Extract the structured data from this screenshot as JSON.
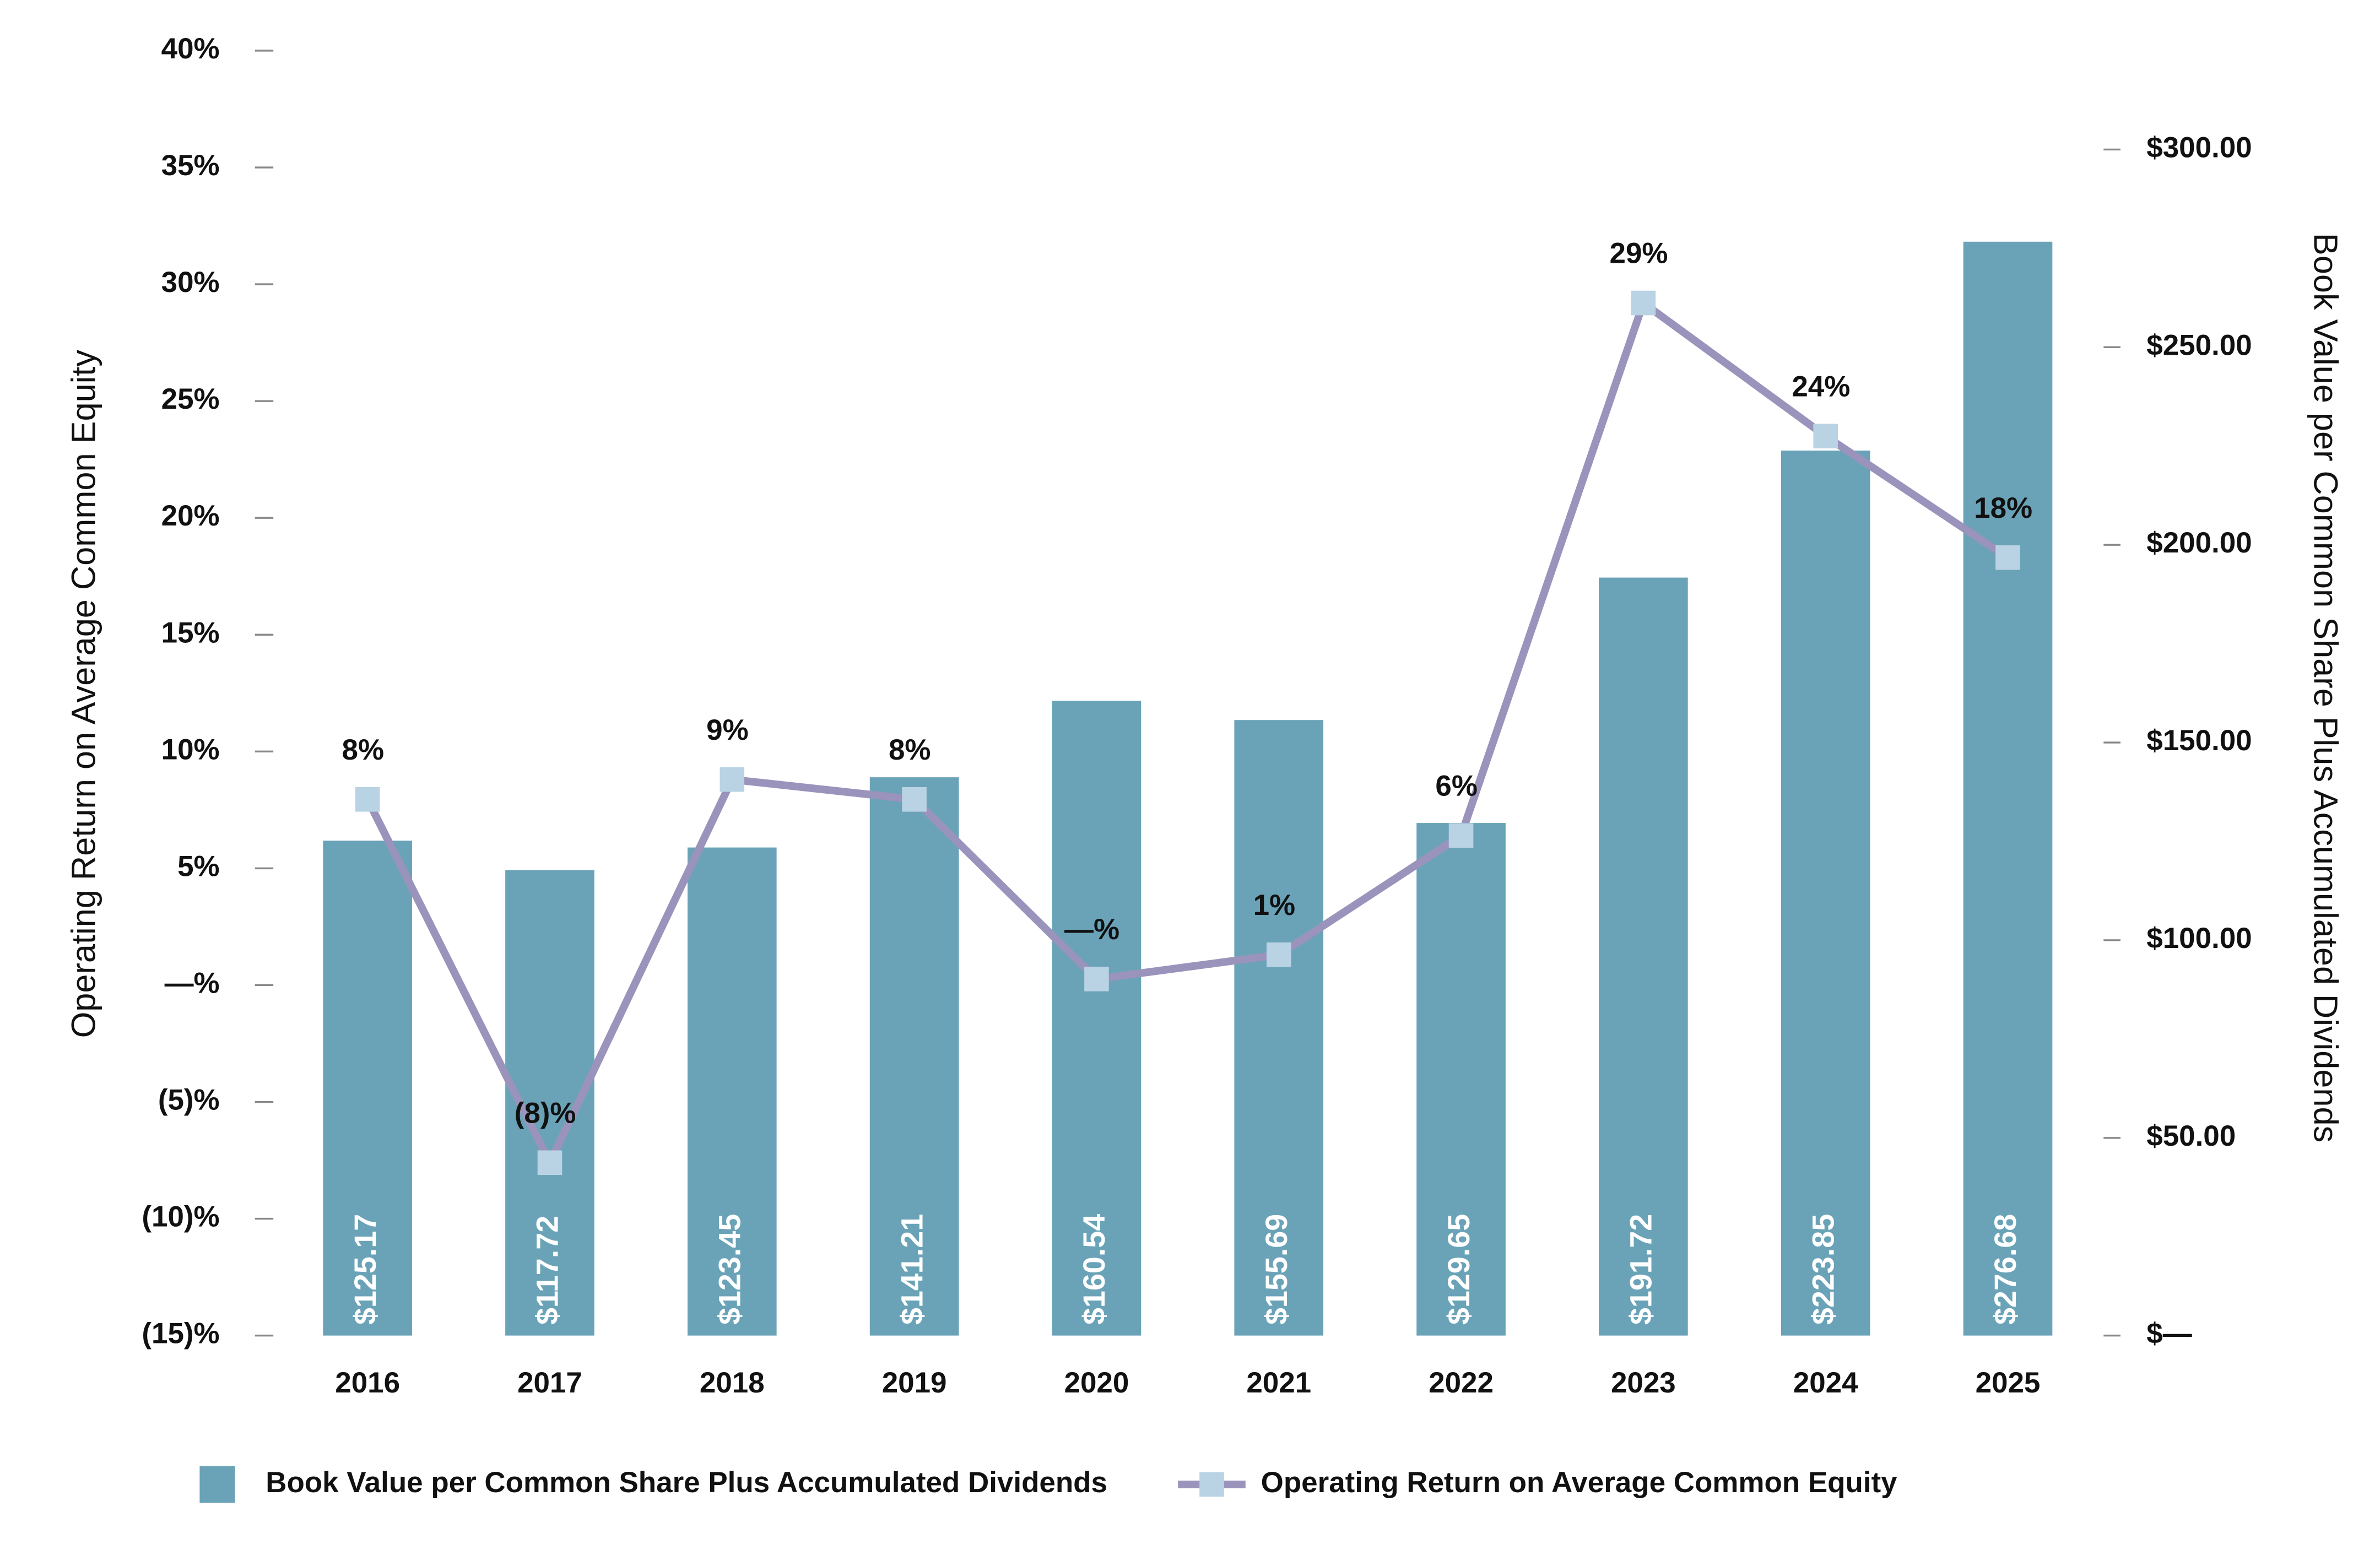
{
  "chart_data": {
    "type": "bar",
    "categories": [
      "2016",
      "2017",
      "2018",
      "2019",
      "2020",
      "2021",
      "2022",
      "2023",
      "2024",
      "2025"
    ],
    "series": [
      {
        "name": "Book Value per Common Share Plus Accumulated Dividends",
        "type": "bar",
        "axis": "y2",
        "color": "#6aa3b7",
        "values": [
          125.17,
          117.72,
          123.45,
          141.21,
          160.54,
          155.69,
          129.65,
          191.72,
          223.85,
          276.68
        ],
        "value_labels": [
          "$125.17",
          "$117.72",
          "$123.45",
          "$141.21",
          "$160.54",
          "$155.69",
          "$129.65",
          "$191.72",
          "$223.85",
          "$276.68"
        ]
      },
      {
        "name": "Operating Return on Average Common Equity",
        "type": "line",
        "color": "#9a93bb",
        "marker_color": "#b9d3e4",
        "values": [
          7.95,
          -7.6,
          8.8,
          7.95,
          0.26,
          1.3,
          6.4,
          29.2,
          23.5,
          18.3
        ],
        "value_labels": [
          "8%",
          "(8)%",
          "9%",
          "8%",
          "—%",
          "1%",
          "6%",
          "29%",
          "24%",
          "18%"
        ]
      }
    ],
    "ylabel": "Operating Return on Average Common Equity",
    "y2label": "Book Value per Common Share Plus Accumulated Dividends",
    "ylim": [
      -15,
      40
    ],
    "yticks": [
      {
        "value": -15,
        "label": "(15)%"
      },
      {
        "value": -10,
        "label": "(10)%"
      },
      {
        "value": -5,
        "label": "(5)%"
      },
      {
        "value": 0,
        "label": "—%"
      },
      {
        "value": 5,
        "label": "5%"
      },
      {
        "value": 10,
        "label": "10%"
      },
      {
        "value": 15,
        "label": "15%"
      },
      {
        "value": 20,
        "label": "20%"
      },
      {
        "value": 25,
        "label": "25%"
      },
      {
        "value": 30,
        "label": "30%"
      },
      {
        "value": 35,
        "label": "35%"
      },
      {
        "value": 40,
        "label": "40%"
      }
    ],
    "y2lim": [
      0,
      325
    ],
    "y2ticks": [
      {
        "value": 0,
        "label": "$—"
      },
      {
        "value": 50,
        "label": "$50.00"
      },
      {
        "value": 100,
        "label": "$100.00"
      },
      {
        "value": 150,
        "label": "$150.00"
      },
      {
        "value": 200,
        "label": "$200.00"
      },
      {
        "value": 250,
        "label": "$250.00"
      },
      {
        "value": 300,
        "label": "$300.00"
      }
    ],
    "legend": "bottom"
  }
}
